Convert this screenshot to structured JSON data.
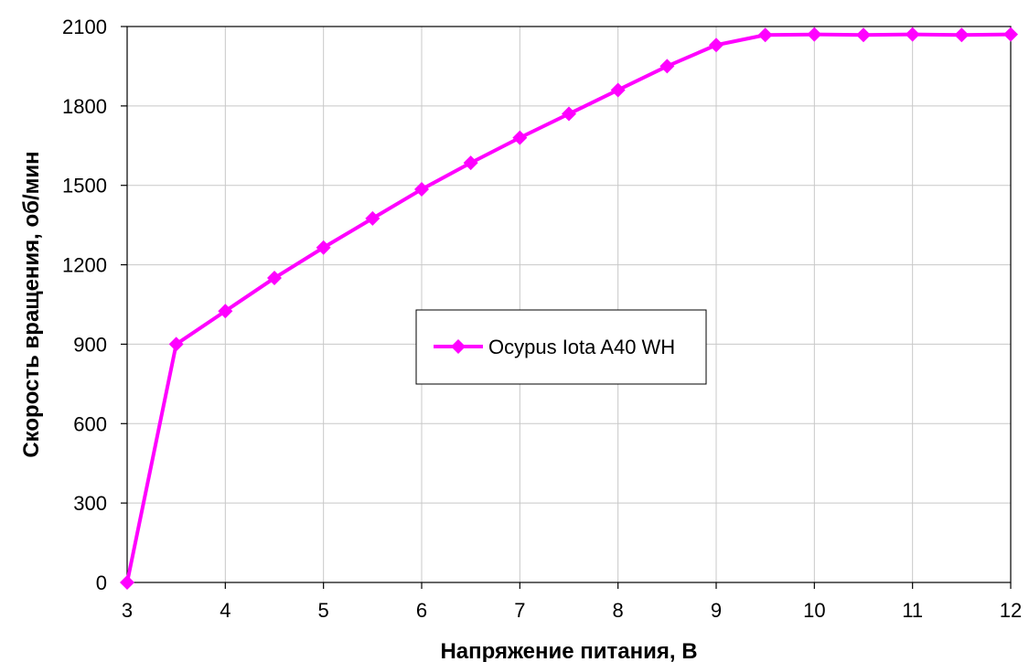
{
  "chart_data": {
    "type": "line",
    "title": "",
    "xlabel": "Напряжение питания, В",
    "ylabel": "Скорость вращения, об/мин",
    "xlim": [
      3,
      12
    ],
    "ylim": [
      0,
      2100
    ],
    "x_ticks": [
      3,
      4,
      5,
      6,
      7,
      8,
      9,
      10,
      11,
      12
    ],
    "y_ticks": [
      0,
      300,
      600,
      900,
      1200,
      1500,
      1800,
      2100
    ],
    "grid": true,
    "legend_position": "center",
    "series": [
      {
        "name": "Ocypus Iota A40 WH",
        "color": "#FF00FF",
        "marker": "diamond",
        "x": [
          3,
          3.5,
          4,
          4.5,
          5,
          5.5,
          6,
          6.5,
          7,
          7.5,
          8,
          8.5,
          9,
          9.5,
          10,
          10.5,
          11,
          11.5,
          12
        ],
        "y": [
          0,
          900,
          1025,
          1150,
          1265,
          1375,
          1485,
          1585,
          1680,
          1770,
          1860,
          1950,
          2030,
          2068,
          2070,
          2068,
          2070,
          2068,
          2070
        ]
      }
    ]
  }
}
